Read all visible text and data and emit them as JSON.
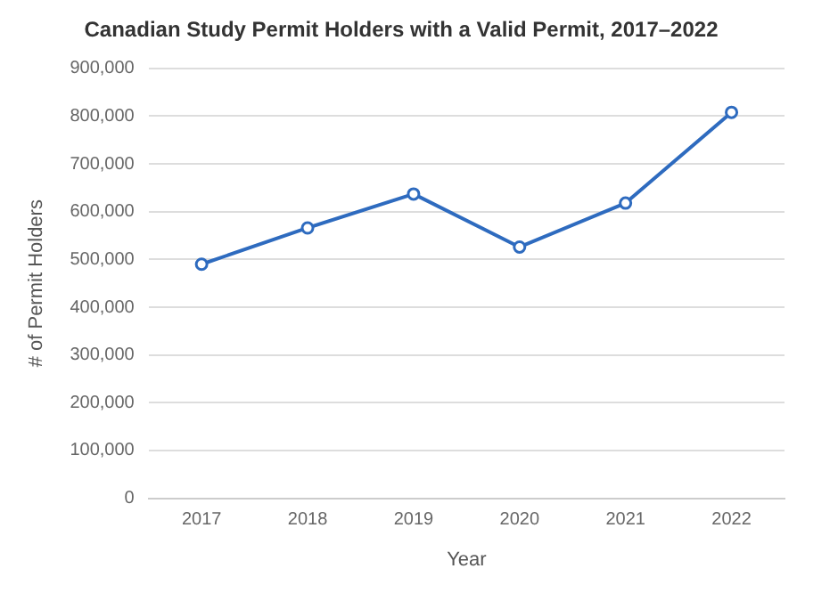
{
  "chart_data": {
    "type": "line",
    "title": "Canadian Study Permit Holders with a Valid Permit, 2017–2022",
    "xlabel": "Year",
    "ylabel": "# of Permit Holders",
    "categories": [
      "2017",
      "2018",
      "2019",
      "2020",
      "2021",
      "2022"
    ],
    "series": [
      {
        "color": "#2e6bbf",
        "values": [
          490000,
          566000,
          637000,
          526000,
          618000,
          808000
        ]
      }
    ],
    "ylim": [
      0,
      900000
    ],
    "yticks": [
      0,
      {
        "value": 100000,
        "label": "100,000"
      },
      {
        "value": 200000,
        "label": "200,000"
      },
      {
        "value": 300000,
        "label": "300,000"
      },
      {
        "value": 400000,
        "label": "400,000"
      },
      {
        "value": 500000,
        "label": "500,000"
      },
      {
        "value": 600000,
        "label": "600,000"
      },
      {
        "value": 700000,
        "label": "700,000"
      },
      {
        "value": 800000,
        "label": "800,000"
      },
      {
        "value": 900000,
        "label": "900,000"
      }
    ],
    "grid": "y",
    "marker": "circle",
    "line_style": "solid",
    "legend": false
  }
}
